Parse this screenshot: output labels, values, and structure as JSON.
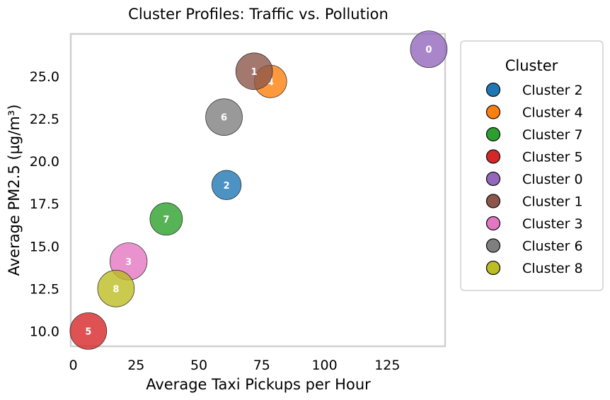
{
  "chart_data": {
    "type": "scatter",
    "title": "Cluster Profiles: Traffic vs. Pollution",
    "xlabel": "Average Taxi Pickups per Hour",
    "ylabel": "Average PM2.5 (µg/m³)",
    "xlim": [
      -1,
      148
    ],
    "ylim": [
      9.1,
      27.5
    ],
    "xticks": [
      0,
      25,
      50,
      75,
      100,
      125
    ],
    "yticks": [
      10.0,
      12.5,
      15.0,
      17.5,
      20.0,
      22.5,
      25.0
    ],
    "grid": false,
    "legend": {
      "title": "Cluster",
      "placement": "outside-right",
      "entries": [
        "Cluster 2",
        "Cluster 4",
        "Cluster 7",
        "Cluster 5",
        "Cluster 0",
        "Cluster 1",
        "Cluster 3",
        "Cluster 6",
        "Cluster 8"
      ]
    },
    "points": [
      {
        "cluster": "2",
        "x": 61,
        "y": 18.6,
        "size": 0.45,
        "color": "#1f77b4"
      },
      {
        "cluster": "4",
        "x": 78.5,
        "y": 24.7,
        "size": 0.55,
        "color": "#ff7f0e"
      },
      {
        "cluster": "7",
        "x": 37,
        "y": 16.6,
        "size": 0.55,
        "color": "#2ca02c"
      },
      {
        "cluster": "5",
        "x": 6,
        "y": 10.0,
        "size": 0.7,
        "color": "#d62728"
      },
      {
        "cluster": "0",
        "x": 141.5,
        "y": 26.6,
        "size": 0.7,
        "color": "#9467bd"
      },
      {
        "cluster": "1",
        "x": 72,
        "y": 25.3,
        "size": 0.7,
        "color": "#8c564b"
      },
      {
        "cluster": "3",
        "x": 22,
        "y": 14.1,
        "size": 0.72,
        "color": "#e377c2"
      },
      {
        "cluster": "6",
        "x": 60,
        "y": 22.6,
        "size": 0.7,
        "color": "#7f7f7f"
      },
      {
        "cluster": "8",
        "x": 17,
        "y": 12.5,
        "size": 0.7,
        "color": "#bcbd22"
      }
    ]
  }
}
